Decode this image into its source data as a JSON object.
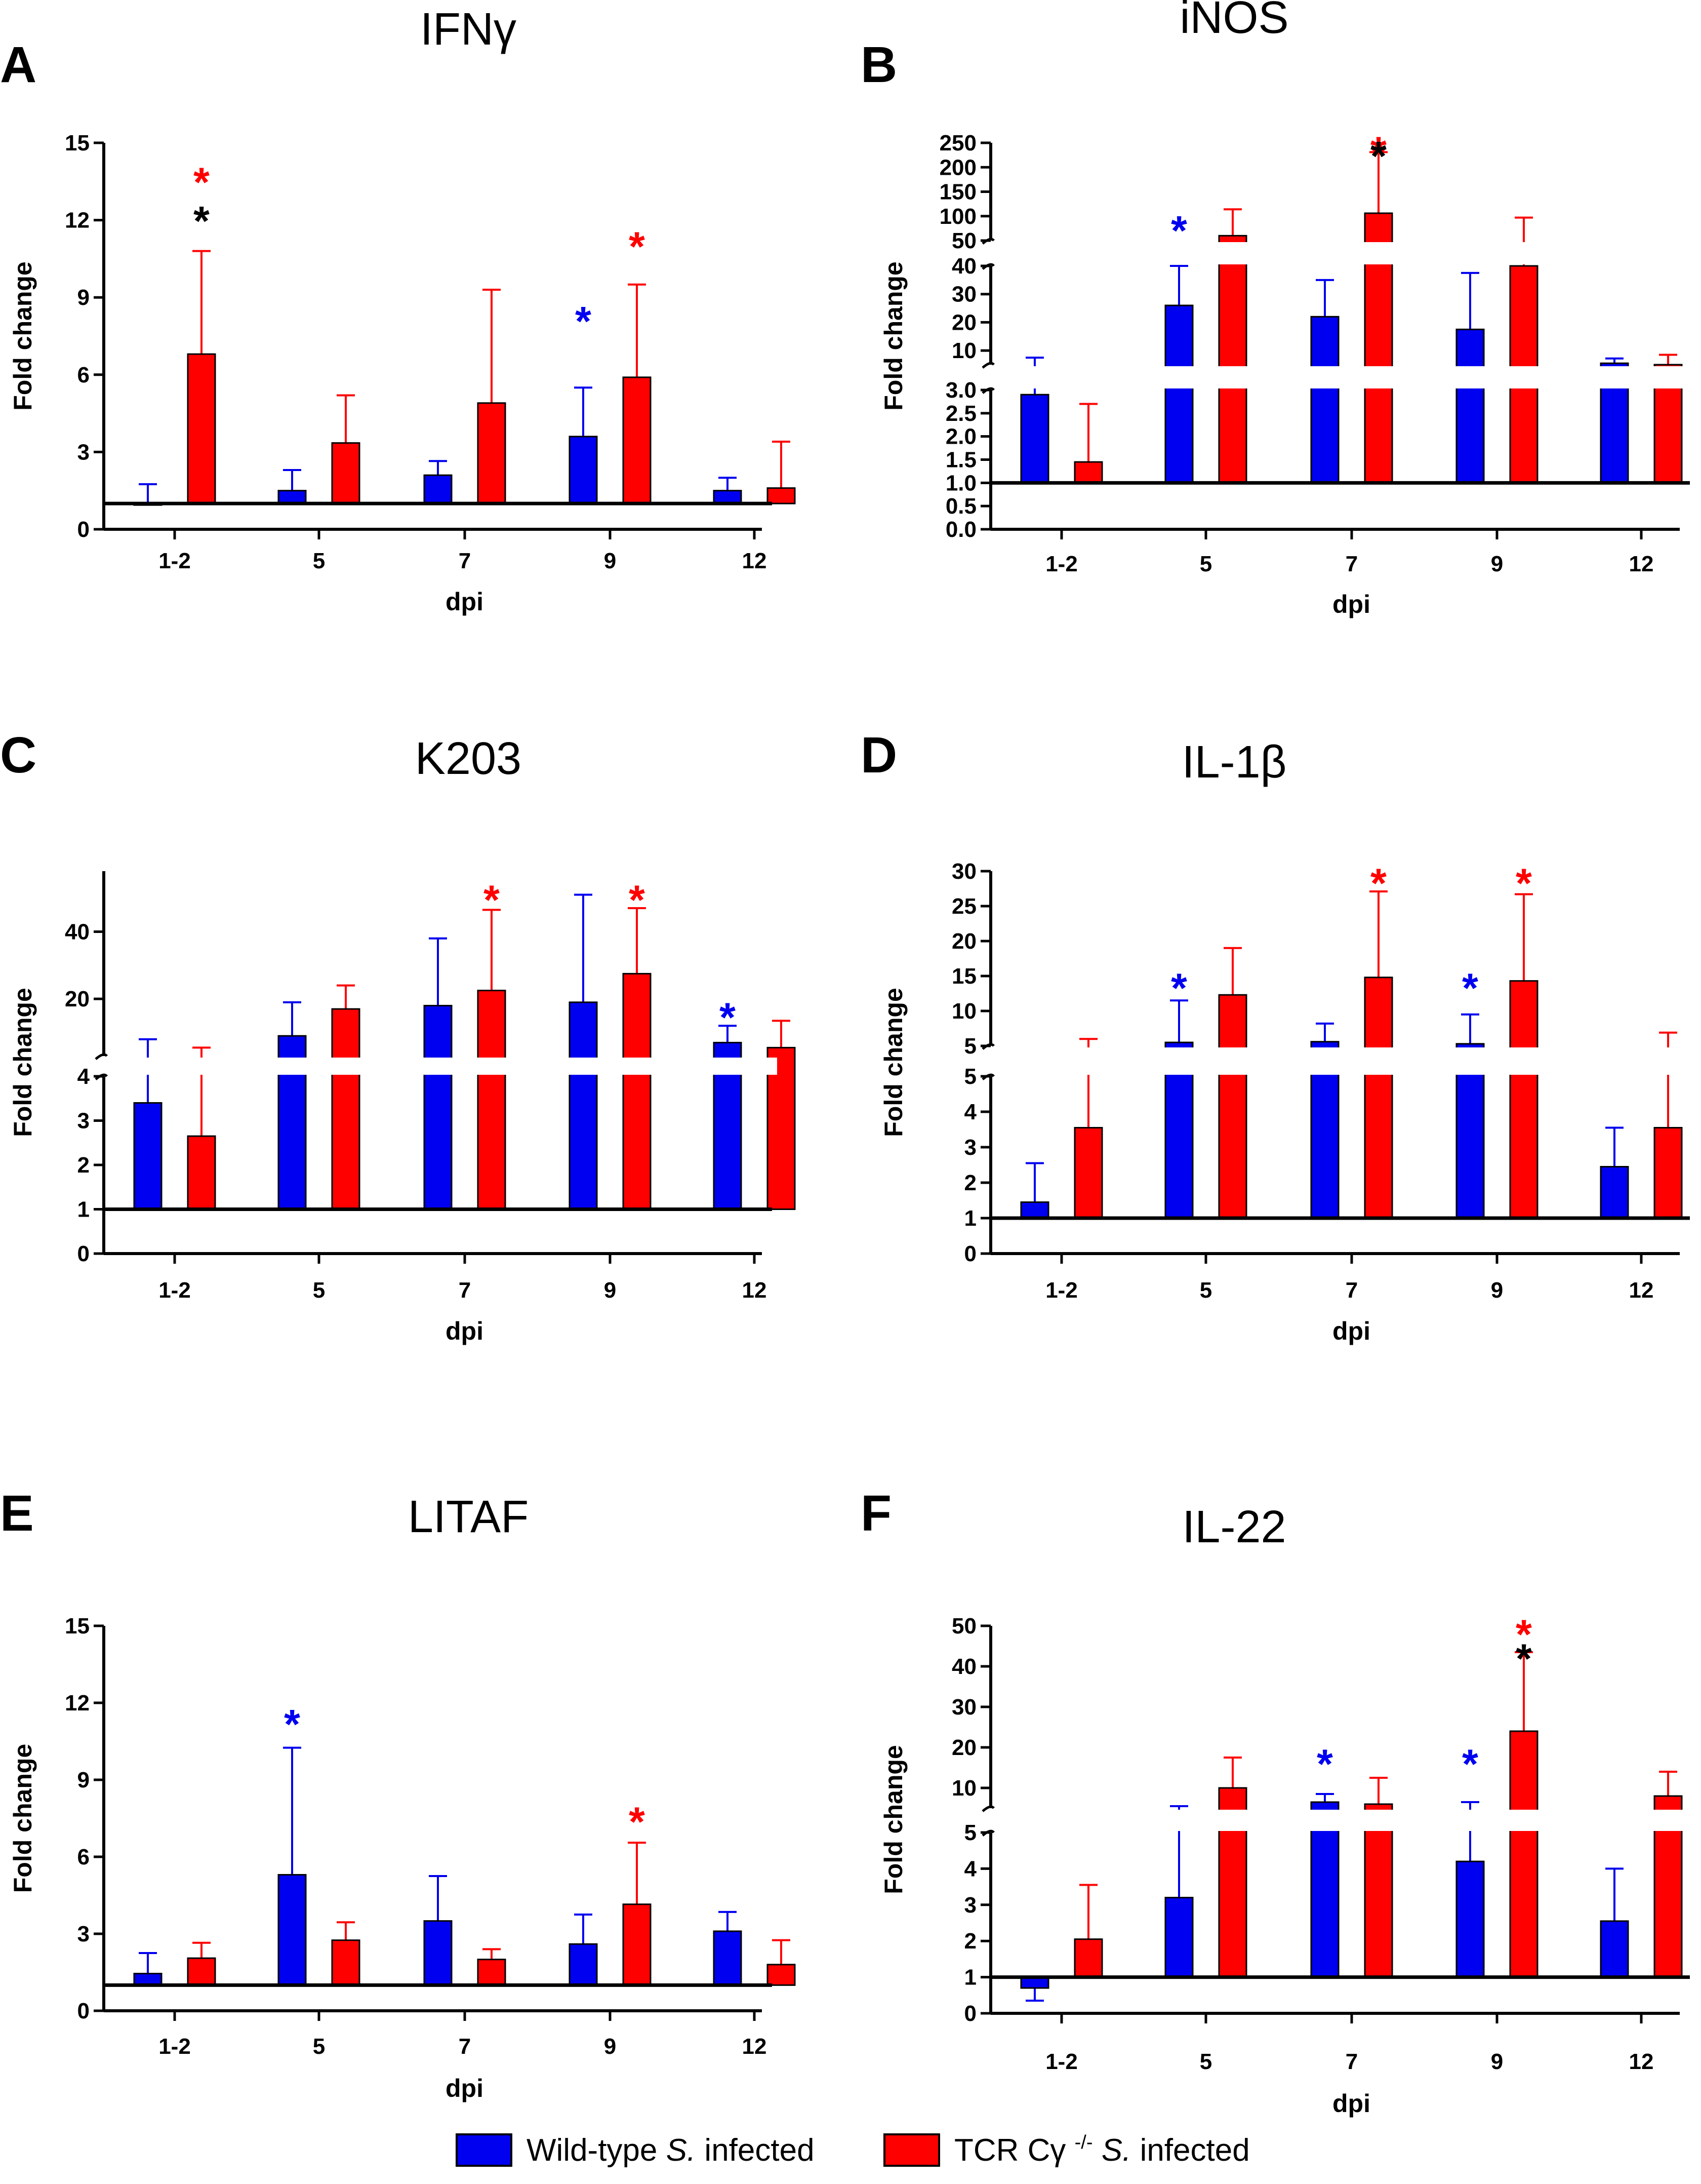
{
  "figure": {
    "colors": {
      "wild_type": "#0000f0",
      "knockout": "#ff0000",
      "both_star": "#000000"
    },
    "legend": {
      "wild_type": {
        "prefix": "Wild-type ",
        "species": "S.",
        "suffix": " infected"
      },
      "knockout": {
        "prefix": "TCR Cγ ",
        "superscript": "-/-",
        "species": " S.",
        "suffix": " infected"
      }
    }
  },
  "chart_data": [
    {
      "letter": "A",
      "title": "IFNγ",
      "type": "bar",
      "xlabel": "dpi",
      "ylabel": "Fold change",
      "categories": [
        "1-2",
        "5",
        "7",
        "9",
        "12"
      ],
      "baseline": 1,
      "axis": {
        "segments": [
          {
            "range": [
              0,
              15
            ],
            "ticks": [
              "0",
              "3",
              "6",
              "9",
              "12",
              "15"
            ],
            "tick_values": [
              0,
              3,
              6,
              9,
              12,
              15
            ]
          }
        ]
      },
      "series": [
        {
          "name": "Wild-type S. infected",
          "values": [
            1.0,
            1.5,
            2.1,
            3.6,
            1.5
          ],
          "err_upper": [
            1.75,
            2.3,
            2.65,
            5.5,
            2.0
          ]
        },
        {
          "name": "TCR Cγ -/- S. infected",
          "values": [
            6.8,
            3.35,
            4.9,
            5.9,
            1.6
          ],
          "err_upper": [
            10.8,
            5.2,
            9.3,
            9.5,
            3.4
          ]
        }
      ],
      "stars": [
        {
          "category": "1-2",
          "series": 1,
          "color": "knockout",
          "value": 13.8
        },
        {
          "category": "1-2",
          "series": 1,
          "color": "both_star",
          "value": 12.3
        },
        {
          "category": "9",
          "series": 0,
          "color": "wild_type",
          "value": 8.4
        },
        {
          "category": "9",
          "series": 1,
          "color": "knockout",
          "value": 11.3
        }
      ]
    },
    {
      "letter": "B",
      "title": "iNOS",
      "type": "bar",
      "xlabel": "dpi",
      "ylabel": "Fold change",
      "categories": [
        "1-2",
        "5",
        "7",
        "9",
        "12"
      ],
      "baseline": 1,
      "axis": {
        "segments": [
          {
            "range": [
              0,
              3
            ],
            "ticks": [
              "0.0",
              "0.5",
              "1.0",
              "1.5",
              "2.0",
              "2.5",
              "3.0"
            ],
            "tick_values": [
              0,
              0.5,
              1,
              1.5,
              2,
              2.5,
              3
            ]
          },
          {
            "range": [
              5,
              40
            ],
            "ticks": [
              "10",
              "20",
              "30",
              "40"
            ],
            "tick_values": [
              10,
              20,
              30,
              40
            ]
          },
          {
            "range": [
              50,
              250
            ],
            "ticks": [
              "50",
              "100",
              "150",
              "200",
              "250"
            ],
            "tick_values": [
              50,
              100,
              150,
              200,
              250
            ]
          }
        ]
      },
      "series": [
        {
          "name": "Wild-type S. infected",
          "values": [
            2.9,
            26,
            22,
            17.5,
            5.5
          ],
          "err_upper": [
            7.5,
            40,
            35,
            37.5,
            7.2
          ]
        },
        {
          "name": "TCR Cγ -/- S. infected",
          "values": [
            1.45,
            60,
            106,
            40,
            5.0
          ],
          "err_upper": [
            2.7,
            114,
            231,
            97,
            8.5
          ]
        }
      ],
      "stars": [
        {
          "category": "5",
          "series": 0,
          "color": "wild_type",
          "value": 88
        },
        {
          "category": "7",
          "series": 1,
          "color": "knockout",
          "value": 290
        },
        {
          "category": "7",
          "series": 1,
          "color": "both_star",
          "value": 240
        }
      ]
    },
    {
      "letter": "C",
      "title": "K203",
      "type": "bar",
      "xlabel": "dpi",
      "ylabel": "Fold change",
      "categories": [
        "1-2",
        "5",
        "7",
        "9",
        "12"
      ],
      "baseline": 1,
      "axis": {
        "segments": [
          {
            "range": [
              0,
              4
            ],
            "ticks": [
              "0",
              "1",
              "2",
              "3",
              "4"
            ],
            "tick_values": [
              0,
              1,
              2,
              3,
              4
            ]
          },
          {
            "range": [
              3,
              58
            ],
            "ticks": [
              "20",
              "40"
            ],
            "tick_values": [
              20,
              40
            ]
          }
        ]
      },
      "series": [
        {
          "name": "Wild-type S. infected",
          "values": [
            3.4,
            9,
            18,
            19,
            7
          ],
          "err_upper": [
            8,
            19,
            38,
            51,
            12
          ]
        },
        {
          "name": "TCR Cγ -/- S. infected",
          "values": [
            2.65,
            17,
            22.5,
            27.5,
            5.5
          ],
          "err_upper": [
            5.5,
            24,
            46.5,
            47,
            13.5
          ]
        }
      ],
      "stars": [
        {
          "category": "7",
          "series": 1,
          "color": "knockout",
          "value": 52
        },
        {
          "category": "9",
          "series": 1,
          "color": "knockout",
          "value": 52
        },
        {
          "category": "12",
          "series": 0,
          "color": "wild_type",
          "value": 17
        }
      ]
    },
    {
      "letter": "D",
      "title": "IL-1β",
      "type": "bar",
      "xlabel": "dpi",
      "ylabel": "Fold change",
      "categories": [
        "1-2",
        "5",
        "7",
        "9",
        "12"
      ],
      "baseline": 1,
      "axis": {
        "segments": [
          {
            "range": [
              0,
              5
            ],
            "ticks": [
              "0",
              "1",
              "2",
              "3",
              "4",
              "5"
            ],
            "tick_values": [
              0,
              1,
              2,
              3,
              4,
              5
            ]
          },
          {
            "range": [
              5,
              30
            ],
            "ticks": [
              "5",
              "10",
              "15",
              "20",
              "25",
              "30"
            ],
            "tick_values": [
              5,
              10,
              15,
              20,
              25,
              30
            ]
          }
        ]
      },
      "series": [
        {
          "name": "Wild-type S. infected",
          "values": [
            1.45,
            5.5,
            5.6,
            5.3,
            2.45
          ],
          "err_upper": [
            2.55,
            11.5,
            8.2,
            9.5,
            3.55
          ]
        },
        {
          "name": "TCR Cγ -/- S. infected",
          "values": [
            3.55,
            12.3,
            14.8,
            14.3,
            3.55
          ],
          "err_upper": [
            6,
            19,
            27.1,
            26.7,
            6.9
          ]
        }
      ],
      "stars": [
        {
          "category": "5",
          "series": 0,
          "color": "wild_type",
          "value": 14.5
        },
        {
          "category": "7",
          "series": 1,
          "color": "knockout",
          "value": 29.5
        },
        {
          "category": "9",
          "series": 0,
          "color": "wild_type",
          "value": 14.5
        },
        {
          "category": "9",
          "series": 1,
          "color": "knockout",
          "value": 29.5
        }
      ]
    },
    {
      "letter": "E",
      "title": "LITAF",
      "type": "bar",
      "xlabel": "dpi",
      "ylabel": "Fold change",
      "categories": [
        "1-2",
        "5",
        "7",
        "9",
        "12"
      ],
      "baseline": 1,
      "axis": {
        "segments": [
          {
            "range": [
              0,
              15
            ],
            "ticks": [
              "0",
              "3",
              "6",
              "9",
              "12",
              "15"
            ],
            "tick_values": [
              0,
              3,
              6,
              9,
              12,
              15
            ]
          }
        ]
      },
      "series": [
        {
          "name": "Wild-type S. infected",
          "values": [
            1.45,
            5.3,
            3.5,
            2.6,
            3.1
          ],
          "err_upper": [
            2.25,
            10.25,
            5.25,
            3.75,
            3.85
          ]
        },
        {
          "name": "TCR Cγ -/- S. infected",
          "values": [
            2.05,
            2.75,
            2.0,
            4.15,
            1.8
          ],
          "err_upper": [
            2.65,
            3.45,
            2.4,
            6.55,
            2.75
          ]
        }
      ],
      "stars": [
        {
          "category": "5",
          "series": 0,
          "color": "wild_type",
          "value": 11.5
        },
        {
          "category": "9",
          "series": 1,
          "color": "knockout",
          "value": 7.7
        }
      ]
    },
    {
      "letter": "F",
      "title": "IL-22",
      "type": "bar",
      "xlabel": "dpi",
      "ylabel": "Fold change",
      "categories": [
        "1-2",
        "5",
        "7",
        "9",
        "12"
      ],
      "baseline": 1,
      "axis": {
        "segments": [
          {
            "range": [
              0,
              5
            ],
            "ticks": [
              "0",
              "1",
              "2",
              "3",
              "4",
              "5"
            ],
            "tick_values": [
              0,
              1,
              2,
              3,
              4,
              5
            ]
          },
          {
            "range": [
              5,
              50
            ],
            "ticks": [
              "10",
              "20",
              "30",
              "40",
              "50"
            ],
            "tick_values": [
              10,
              20,
              30,
              40,
              50
            ]
          }
        ]
      },
      "series": [
        {
          "name": "Wild-type S. infected",
          "values": [
            0.7,
            3.2,
            6.5,
            4.2,
            2.55
          ],
          "err_upper": [
            0.35,
            5.5,
            8.5,
            6.5,
            4.0
          ]
        },
        {
          "name": "TCR Cγ -/- S. infected",
          "values": [
            2.05,
            10,
            6,
            24,
            8
          ],
          "err_upper": [
            3.55,
            17.5,
            12.5,
            43.5,
            14
          ]
        }
      ],
      "stars": [
        {
          "category": "7",
          "series": 0,
          "color": "wild_type",
          "value": 18
        },
        {
          "category": "9",
          "series": 0,
          "color": "wild_type",
          "value": 18
        },
        {
          "category": "9",
          "series": 1,
          "color": "knockout",
          "value": 52
        },
        {
          "category": "9",
          "series": 1,
          "color": "both_star",
          "value": 44
        }
      ]
    }
  ]
}
